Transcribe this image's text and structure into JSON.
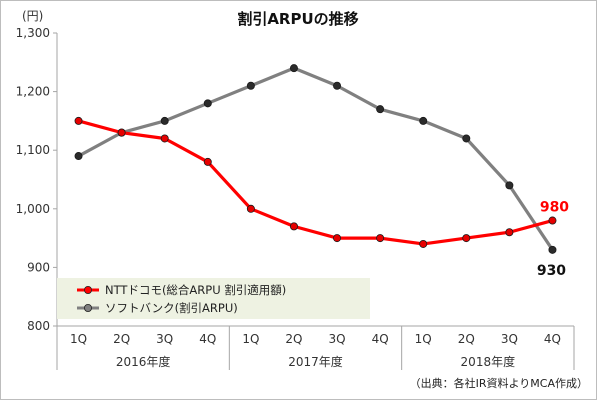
{
  "chart_data": {
    "type": "line",
    "title": "割引ARPUの推移",
    "unit_label": "(円)",
    "ylim": [
      800,
      1300
    ],
    "yticks": [
      800,
      900,
      1000,
      1100,
      1200,
      1300
    ],
    "ytick_labels": [
      "800",
      "900",
      "1,000",
      "1,100",
      "1,200",
      "1,300"
    ],
    "categories": [
      "1Q",
      "2Q",
      "3Q",
      "4Q",
      "1Q",
      "2Q",
      "3Q",
      "4Q",
      "1Q",
      "2Q",
      "3Q",
      "4Q"
    ],
    "year_groups": [
      "2016年度",
      "2017年度",
      "2018年度"
    ],
    "series": [
      {
        "name": "NTTドコモ(総合ARPU 割引適用額)",
        "color": "#ff0000",
        "values": [
          1150,
          1130,
          1120,
          1080,
          1000,
          970,
          950,
          950,
          940,
          950,
          960,
          980
        ],
        "end_label": "980"
      },
      {
        "name": "ソフトバンク(割引ARPU)",
        "color": "#808080",
        "values": [
          1090,
          1130,
          1150,
          1180,
          1210,
          1240,
          1210,
          1170,
          1150,
          1120,
          1040,
          930
        ],
        "end_label": "930"
      }
    ],
    "grid": false,
    "legend": "lower-left"
  },
  "source_note": "（出典：各社IR資料よりMCA作成）",
  "colors": {
    "docomo": "#ff0000",
    "softbank": "#808080",
    "legend_bg": "#eef2e2",
    "axis": "#a6a6a6",
    "docomo_label": "#ff0000",
    "softbank_label": "#111111"
  }
}
